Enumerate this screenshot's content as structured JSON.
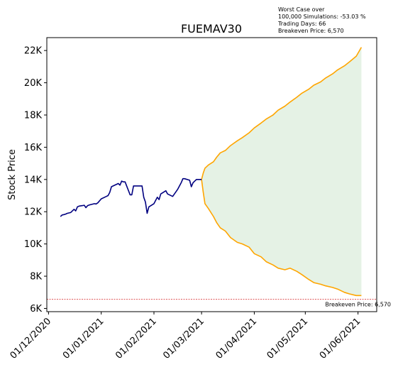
{
  "chart_data": {
    "type": "line",
    "title": "FUEMAV30",
    "xlabel": "",
    "ylabel": "Stock Price",
    "grid": false,
    "x_ticks": [
      "01/12/2020",
      "01/01/2021",
      "01/02/2021",
      "01/03/2021",
      "01/04/2021",
      "01/05/2021",
      "01/06/2021"
    ],
    "y_ticks": [
      {
        "value": 6000,
        "label": "6K"
      },
      {
        "value": 8000,
        "label": "8K"
      },
      {
        "value": 10000,
        "label": "10K"
      },
      {
        "value": 12000,
        "label": "12K"
      },
      {
        "value": 14000,
        "label": "14K"
      },
      {
        "value": 16000,
        "label": "16K"
      },
      {
        "value": 18000,
        "label": "18K"
      },
      {
        "value": 20000,
        "label": "20K"
      },
      {
        "value": 22000,
        "label": "22K"
      }
    ],
    "xlim": [
      "2020-11-30",
      "2021-06-12"
    ],
    "ylim": [
      5800,
      22800
    ],
    "annotation_lines": [
      "Worst Case over",
      "100,000 Simulations: -53.03 %",
      "Trading Days: 66",
      "Breakeven Price: 6,570"
    ],
    "breakeven": {
      "value": 6570,
      "label": "Breakeven Price: 6,570",
      "color": "#d62728"
    },
    "colors": {
      "history": "#000080",
      "bands": "#ffa500",
      "fill": "#e5f2e5"
    },
    "history": {
      "x": [
        "2020-12-08",
        "2020-12-09",
        "2020-12-10",
        "2020-12-11",
        "2020-12-12",
        "2020-12-14",
        "2020-12-15",
        "2020-12-16",
        "2020-12-17",
        "2020-12-18",
        "2020-12-19",
        "2020-12-21",
        "2020-12-22",
        "2020-12-23",
        "2020-12-24",
        "2020-12-25",
        "2020-12-28",
        "2020-12-29",
        "2020-12-30",
        "2021-01-01",
        "2021-01-04",
        "2021-01-05",
        "2021-01-06",
        "2021-01-07",
        "2021-01-08",
        "2021-01-11",
        "2021-01-12",
        "2021-01-13",
        "2021-01-14",
        "2021-01-15",
        "2021-01-18",
        "2021-01-19",
        "2021-01-20",
        "2021-01-21",
        "2021-01-22",
        "2021-01-25",
        "2021-01-26",
        "2021-01-27",
        "2021-01-28",
        "2021-01-29",
        "2021-02-01",
        "2021-02-02",
        "2021-02-03",
        "2021-02-04",
        "2021-02-05",
        "2021-02-08",
        "2021-02-09",
        "2021-02-12",
        "2021-02-15",
        "2021-02-16",
        "2021-02-17",
        "2021-02-18",
        "2021-02-19",
        "2021-02-22",
        "2021-02-23",
        "2021-02-24",
        "2021-02-25",
        "2021-02-26",
        "2021-03-01"
      ],
      "y": [
        11700,
        11800,
        11820,
        11850,
        11900,
        11950,
        12050,
        12150,
        12050,
        12300,
        12350,
        12380,
        12400,
        12250,
        12380,
        12420,
        12500,
        12480,
        12550,
        12800,
        12950,
        13000,
        13200,
        13550,
        13600,
        13750,
        13650,
        13900,
        13850,
        13850,
        13050,
        13050,
        13600,
        13600,
        13600,
        13600,
        12900,
        12600,
        11900,
        12300,
        12500,
        12700,
        12900,
        12750,
        13100,
        13300,
        13100,
        12950,
        13400,
        13600,
        13800,
        14050,
        14050,
        13950,
        13550,
        13800,
        13900,
        14000,
        14000
      ]
    },
    "upper": {
      "x": [
        "2021-03-01",
        "2021-03-02",
        "2021-03-03",
        "2021-03-05",
        "2021-03-08",
        "2021-03-10",
        "2021-03-12",
        "2021-03-15",
        "2021-03-18",
        "2021-03-22",
        "2021-03-25",
        "2021-03-29",
        "2021-04-01",
        "2021-04-05",
        "2021-04-08",
        "2021-04-12",
        "2021-04-15",
        "2021-04-19",
        "2021-04-22",
        "2021-04-26",
        "2021-04-29",
        "2021-05-03",
        "2021-05-06",
        "2021-05-10",
        "2021-05-13",
        "2021-05-17",
        "2021-05-20",
        "2021-05-24",
        "2021-05-27",
        "2021-05-31",
        "2021-06-03"
      ],
      "y": [
        14000,
        14400,
        14700,
        14900,
        15100,
        15400,
        15650,
        15800,
        16100,
        16400,
        16600,
        16900,
        17200,
        17500,
        17750,
        18000,
        18300,
        18550,
        18800,
        19100,
        19350,
        19600,
        19850,
        20050,
        20300,
        20550,
        20800,
        21050,
        21300,
        21650,
        22200
      ]
    },
    "lower": {
      "x": [
        "2021-03-01",
        "2021-03-02",
        "2021-03-03",
        "2021-03-05",
        "2021-03-08",
        "2021-03-10",
        "2021-03-12",
        "2021-03-15",
        "2021-03-18",
        "2021-03-22",
        "2021-03-25",
        "2021-03-29",
        "2021-04-01",
        "2021-04-05",
        "2021-04-08",
        "2021-04-12",
        "2021-04-15",
        "2021-04-19",
        "2021-04-22",
        "2021-04-26",
        "2021-04-29",
        "2021-05-03",
        "2021-05-06",
        "2021-05-10",
        "2021-05-13",
        "2021-05-17",
        "2021-05-20",
        "2021-05-24",
        "2021-05-27",
        "2021-05-31",
        "2021-06-03"
      ],
      "y": [
        14000,
        13200,
        12500,
        12200,
        11700,
        11300,
        11000,
        10800,
        10400,
        10100,
        10000,
        9800,
        9400,
        9200,
        8900,
        8700,
        8500,
        8400,
        8500,
        8300,
        8100,
        7800,
        7600,
        7500,
        7400,
        7300,
        7200,
        7000,
        6900,
        6800,
        6800
      ]
    }
  }
}
